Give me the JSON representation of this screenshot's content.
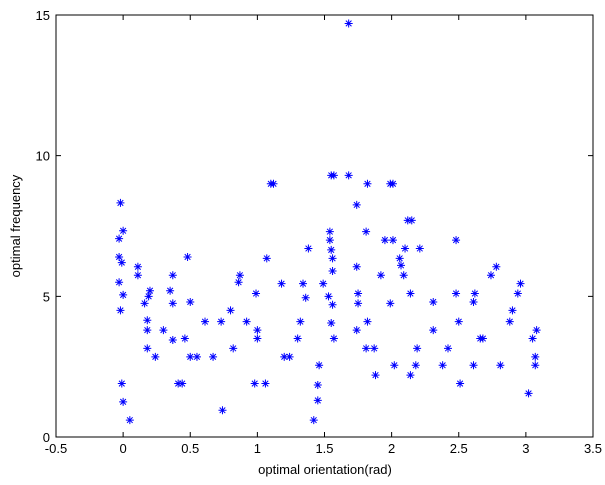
{
  "chart_data": {
    "type": "scatter",
    "x_label": "optimal orientation(rad)",
    "y_label": "optimal frequency",
    "xlim": [
      -0.5,
      3.5
    ],
    "ylim": [
      0,
      15
    ],
    "xticks": [
      -0.5,
      0,
      0.5,
      1,
      1.5,
      2,
      2.5,
      3,
      3.5
    ],
    "yticks": [
      0,
      5,
      10,
      15
    ],
    "color": "#0000ff",
    "x": [
      -0.02,
      -0.03,
      0.0,
      -0.03,
      -0.01,
      -0.03,
      0.0,
      -0.02,
      -0.01,
      0.0,
      0.05,
      0.11,
      0.11,
      0.19,
      0.2,
      0.16,
      0.18,
      0.18,
      0.18,
      0.24,
      0.3,
      0.35,
      0.37,
      0.37,
      0.37,
      0.41,
      0.44,
      0.46,
      0.48,
      0.5,
      0.5,
      0.55,
      0.61,
      0.67,
      0.74,
      0.73,
      0.8,
      0.82,
      0.86,
      0.87,
      0.92,
      0.99,
      1.0,
      1.0,
      0.98,
      1.06,
      1.07,
      1.12,
      1.1,
      1.18,
      1.2,
      1.24,
      1.3,
      1.32,
      1.34,
      1.36,
      1.38,
      1.42,
      1.45,
      1.45,
      1.46,
      1.49,
      1.53,
      1.54,
      1.54,
      1.55,
      1.56,
      1.55,
      1.57,
      1.56,
      1.55,
      1.57,
      1.56,
      1.68,
      1.68,
      1.74,
      1.74,
      1.75,
      1.75,
      1.74,
      1.82,
      1.81,
      1.82,
      1.81,
      1.87,
      1.88,
      1.92,
      1.95,
      1.99,
      2.01,
      2.01,
      1.99,
      2.02,
      2.06,
      2.07,
      2.09,
      2.1,
      2.12,
      2.15,
      2.14,
      2.14,
      2.18,
      2.19,
      2.21,
      2.31,
      2.31,
      2.38,
      2.42,
      2.48,
      2.48,
      2.5,
      2.51,
      2.61,
      2.61,
      2.62,
      2.66,
      2.68,
      2.74,
      2.78,
      2.81,
      2.88,
      2.9,
      2.94,
      2.96,
      3.02,
      3.05,
      3.07,
      3.07,
      3.08
    ],
    "y": [
      8.32,
      7.05,
      7.33,
      6.4,
      6.2,
      5.5,
      5.05,
      4.5,
      1.9,
      1.25,
      0.6,
      6.05,
      5.75,
      5.0,
      5.2,
      4.75,
      4.15,
      3.8,
      3.15,
      2.85,
      3.8,
      5.2,
      5.75,
      4.75,
      3.45,
      1.9,
      1.9,
      3.5,
      6.4,
      4.8,
      2.85,
      2.85,
      4.1,
      2.85,
      0.95,
      4.1,
      4.5,
      3.15,
      5.5,
      5.75,
      4.1,
      5.1,
      3.8,
      3.5,
      1.9,
      1.9,
      6.35,
      9.0,
      9.0,
      5.45,
      2.85,
      2.85,
      3.5,
      4.1,
      5.45,
      4.95,
      6.7,
      0.6,
      1.3,
      1.85,
      2.55,
      5.45,
      5.0,
      7.3,
      7.0,
      6.65,
      6.35,
      9.3,
      9.3,
      5.9,
      4.05,
      3.5,
      4.7,
      14.7,
      9.3,
      8.25,
      6.05,
      5.1,
      4.75,
      3.8,
      9.0,
      7.3,
      4.1,
      3.15,
      3.15,
      2.2,
      5.75,
      7.0,
      9.0,
      9.0,
      7.0,
      4.75,
      2.55,
      6.35,
      6.1,
      5.75,
      6.7,
      7.7,
      7.7,
      5.1,
      2.2,
      2.55,
      3.15,
      6.7,
      4.8,
      3.8,
      2.55,
      3.15,
      7.0,
      5.1,
      4.1,
      1.9,
      2.55,
      4.8,
      5.1,
      3.5,
      3.5,
      5.75,
      6.05,
      2.55,
      4.1,
      4.5,
      5.1,
      5.45,
      1.55,
      3.5,
      2.55,
      2.85,
      3.8
    ]
  }
}
